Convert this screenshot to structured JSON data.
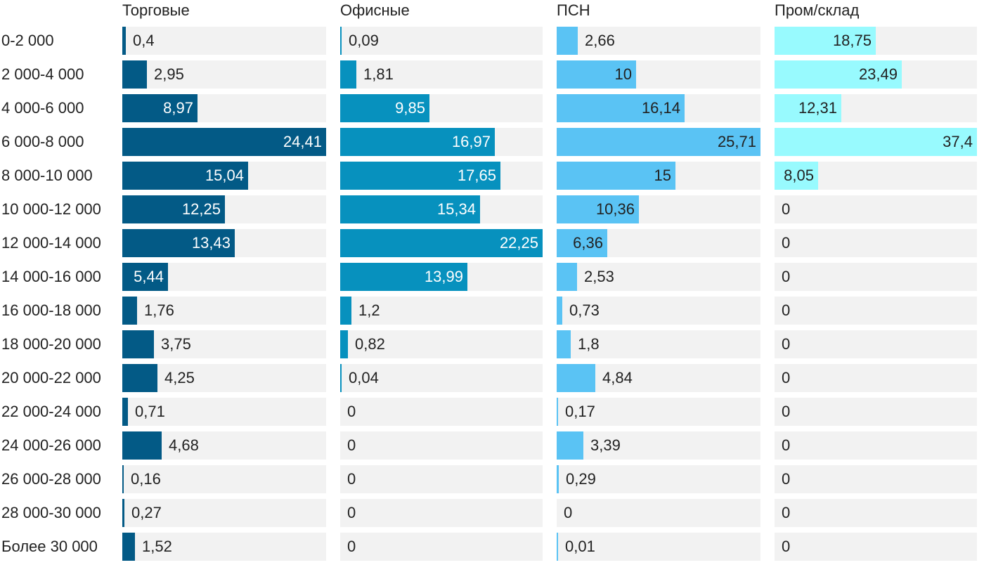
{
  "chart_data": {
    "type": "bar",
    "orientation": "horizontal",
    "layout": "small-multiples",
    "categories": [
      "0-2 000",
      "2 000-4 000",
      "4 000-6 000",
      "6 000-8 000",
      "8 000-10 000",
      "10 000-12 000",
      "12 000-14 000",
      "14 000-16 000",
      "16 000-18 000",
      "18 000-20 000",
      "20 000-22 000",
      "22 000-24 000",
      "24 000-26 000",
      "26 000-28 000",
      "28 000-30 000",
      "Более 30 000"
    ],
    "series": [
      {
        "name": "Торговые",
        "color": "#035a86",
        "labels": [
          "0,4",
          "2,95",
          "8,97",
          "24,41",
          "15,04",
          "12,25",
          "13,43",
          "5,44",
          "1,76",
          "3,75",
          "4,25",
          "0,71",
          "4,68",
          "0,16",
          "0,27",
          "1,52"
        ],
        "values": [
          0.4,
          2.95,
          8.97,
          24.41,
          15.04,
          12.25,
          13.43,
          5.44,
          1.76,
          3.75,
          4.25,
          0.71,
          4.68,
          0.16,
          0.27,
          1.52
        ],
        "max": 24.41
      },
      {
        "name": "Офисные",
        "color": "#0791be",
        "labels": [
          "0,09",
          "1,81",
          "9,85",
          "16,97",
          "17,65",
          "15,34",
          "22,25",
          "13,99",
          "1,2",
          "0,82",
          "0,04",
          "0",
          "0",
          "0",
          "0",
          "0"
        ],
        "values": [
          0.09,
          1.81,
          9.85,
          16.97,
          17.65,
          15.34,
          22.25,
          13.99,
          1.2,
          0.82,
          0.04,
          0,
          0,
          0,
          0,
          0
        ],
        "max": 22.25
      },
      {
        "name": "ПСН",
        "color": "#5ac3f4",
        "labels": [
          "2,66",
          "10",
          "16,14",
          "25,71",
          "15",
          "10,36",
          "6,36",
          "2,53",
          "0,73",
          "1,8",
          "4,84",
          "0,17",
          "3,39",
          "0,29",
          "0",
          "0,01"
        ],
        "values": [
          2.66,
          10,
          16.14,
          25.71,
          15,
          10.36,
          6.36,
          2.53,
          0.73,
          1.8,
          4.84,
          0.17,
          3.39,
          0.29,
          0,
          0.01
        ],
        "max": 25.71
      },
      {
        "name": "Пром/склад",
        "color": "#98fafe",
        "labels": [
          "18,75",
          "23,49",
          "12,31",
          "37,4",
          "8,05",
          "0",
          "0",
          "0",
          "0",
          "0",
          "0",
          "0",
          "0",
          "0",
          "0",
          "0"
        ],
        "values": [
          18.75,
          23.49,
          12.31,
          37.4,
          8.05,
          0,
          0,
          0,
          0,
          0,
          0,
          0,
          0,
          0,
          0,
          0
        ],
        "max": 37.4
      }
    ]
  }
}
